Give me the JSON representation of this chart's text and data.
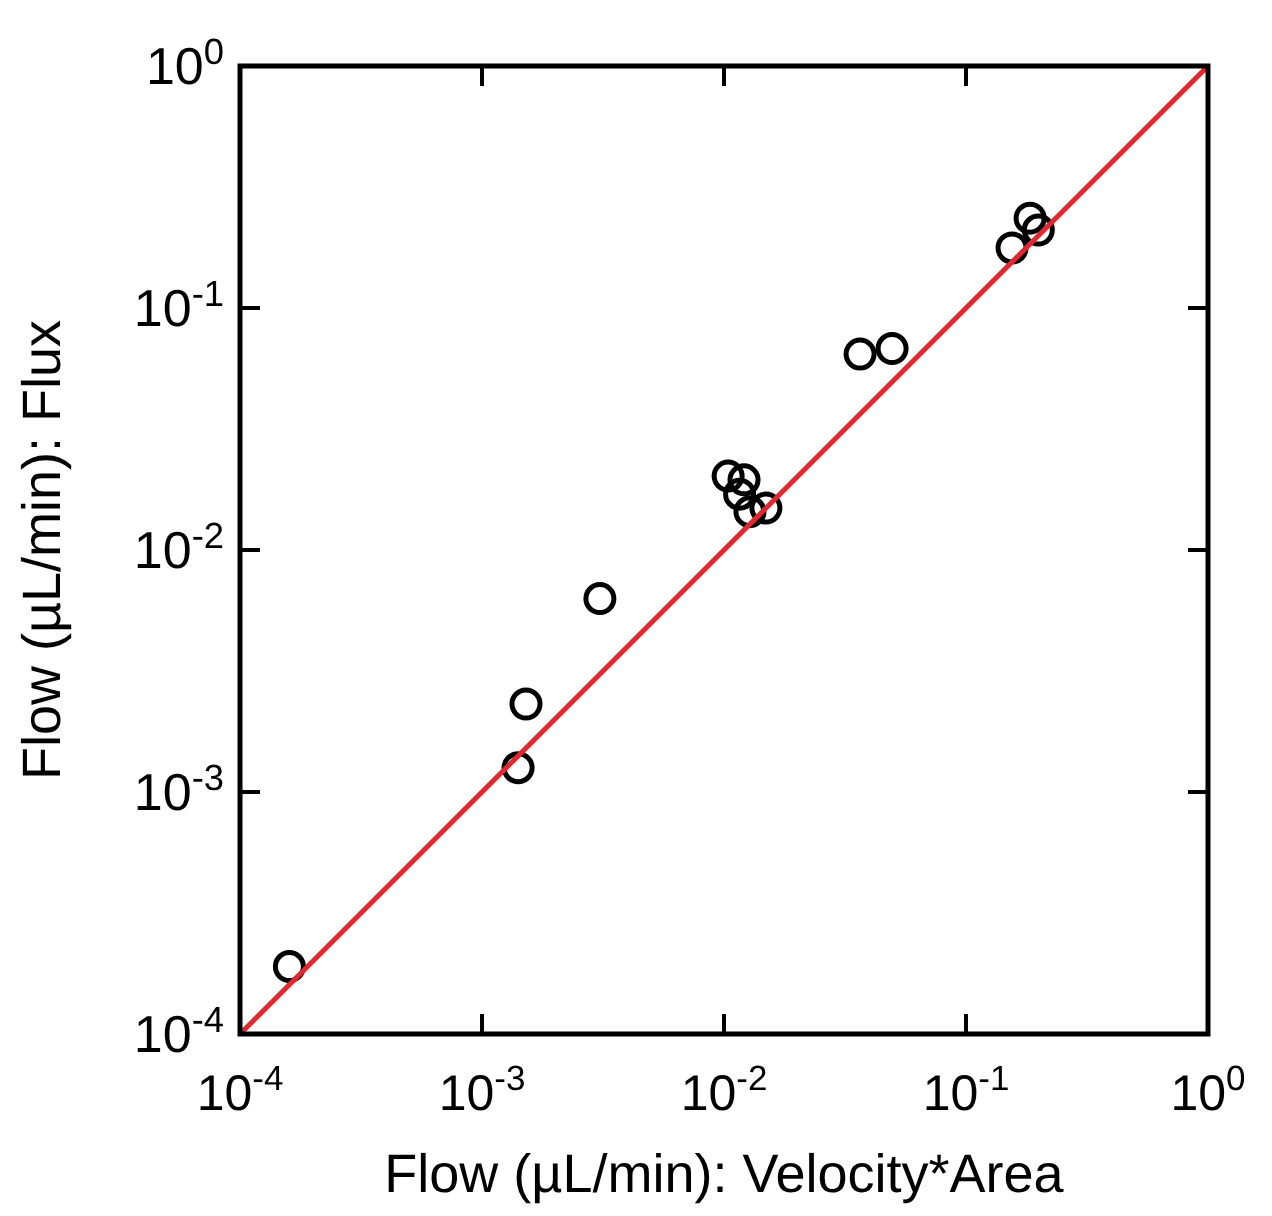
{
  "chart_data": {
    "type": "scatter",
    "xlabel": "Flow (µL/min): Velocity*Area",
    "ylabel": "Flow (µL/min): Flux",
    "log": "xy",
    "grid": false,
    "xlim": [
      0.0001,
      1
    ],
    "ylim": [
      0.0001,
      1
    ],
    "xticks": [
      {
        "value": 0.0001,
        "label": "10$^{-4}$"
      },
      {
        "value": 0.001,
        "label": "10$^{-3}$"
      },
      {
        "value": 0.01,
        "label": "10$^{-2}$"
      },
      {
        "value": 0.1,
        "label": "10$^{-1}$"
      },
      {
        "value": 1,
        "label": "10$^{0}$"
      }
    ],
    "yticks": [
      {
        "value": 0.0001,
        "label": "10$^{-4}$"
      },
      {
        "value": 0.001,
        "label": "10$^{-3}$"
      },
      {
        "value": 0.01,
        "label": "10$^{-2}$"
      },
      {
        "value": 0.1,
        "label": "10$^{-1}$"
      },
      {
        "value": 1,
        "label": "10$^{0}$"
      }
    ],
    "series": [
      {
        "color": "#000000",
        "marker": "circle",
        "x": [
          0.00016,
          0.00141,
          0.00152,
          0.00307,
          0.0104,
          0.0121,
          0.0116,
          0.0128,
          0.0149,
          0.0365,
          0.0495,
          0.155,
          0.184,
          0.199
        ],
        "values": [
          0.00019,
          0.00126,
          0.00231,
          0.0063,
          0.0202,
          0.0195,
          0.017,
          0.0144,
          0.0149,
          0.0645,
          0.068,
          0.177,
          0.235,
          0.21
        ]
      },
      {
        "type": "line",
        "color": "#e0282e",
        "line_style": "solid",
        "x": [
          0.0001,
          1
        ],
        "values": [
          0.0001,
          1
        ]
      }
    ]
  }
}
